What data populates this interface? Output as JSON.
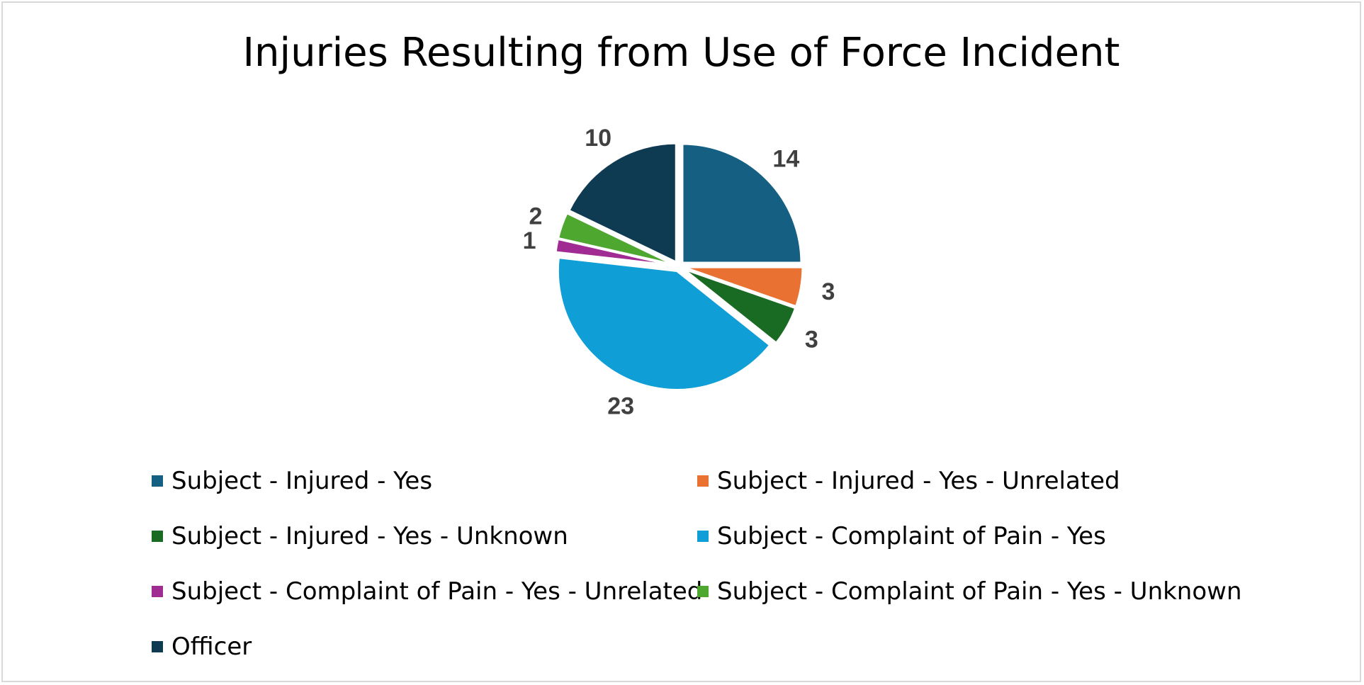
{
  "chart_data": {
    "type": "pie",
    "title": "Injuries Resulting from Use of Force Incident",
    "categories": [
      "Subject - Injured - Yes",
      "Subject - Injured - Yes - Unrelated",
      "Subject - Injured - Yes - Unknown",
      "Subject - Complaint of Pain - Yes",
      "Subject - Complaint of Pain - Yes - Unrelated",
      "Subject - Complaint of Pain - Yes - Unknown",
      "Officer"
    ],
    "values": [
      14,
      3,
      3,
      23,
      1,
      2,
      10
    ],
    "colors": [
      "#156082",
      "#E97132",
      "#196B24",
      "#0F9ED5",
      "#A02B93",
      "#4EA72E",
      "#0E3A52"
    ],
    "legend_position": "bottom",
    "data_labels": [
      "14",
      "3",
      "3",
      "23",
      "1",
      "2",
      "10"
    ]
  }
}
